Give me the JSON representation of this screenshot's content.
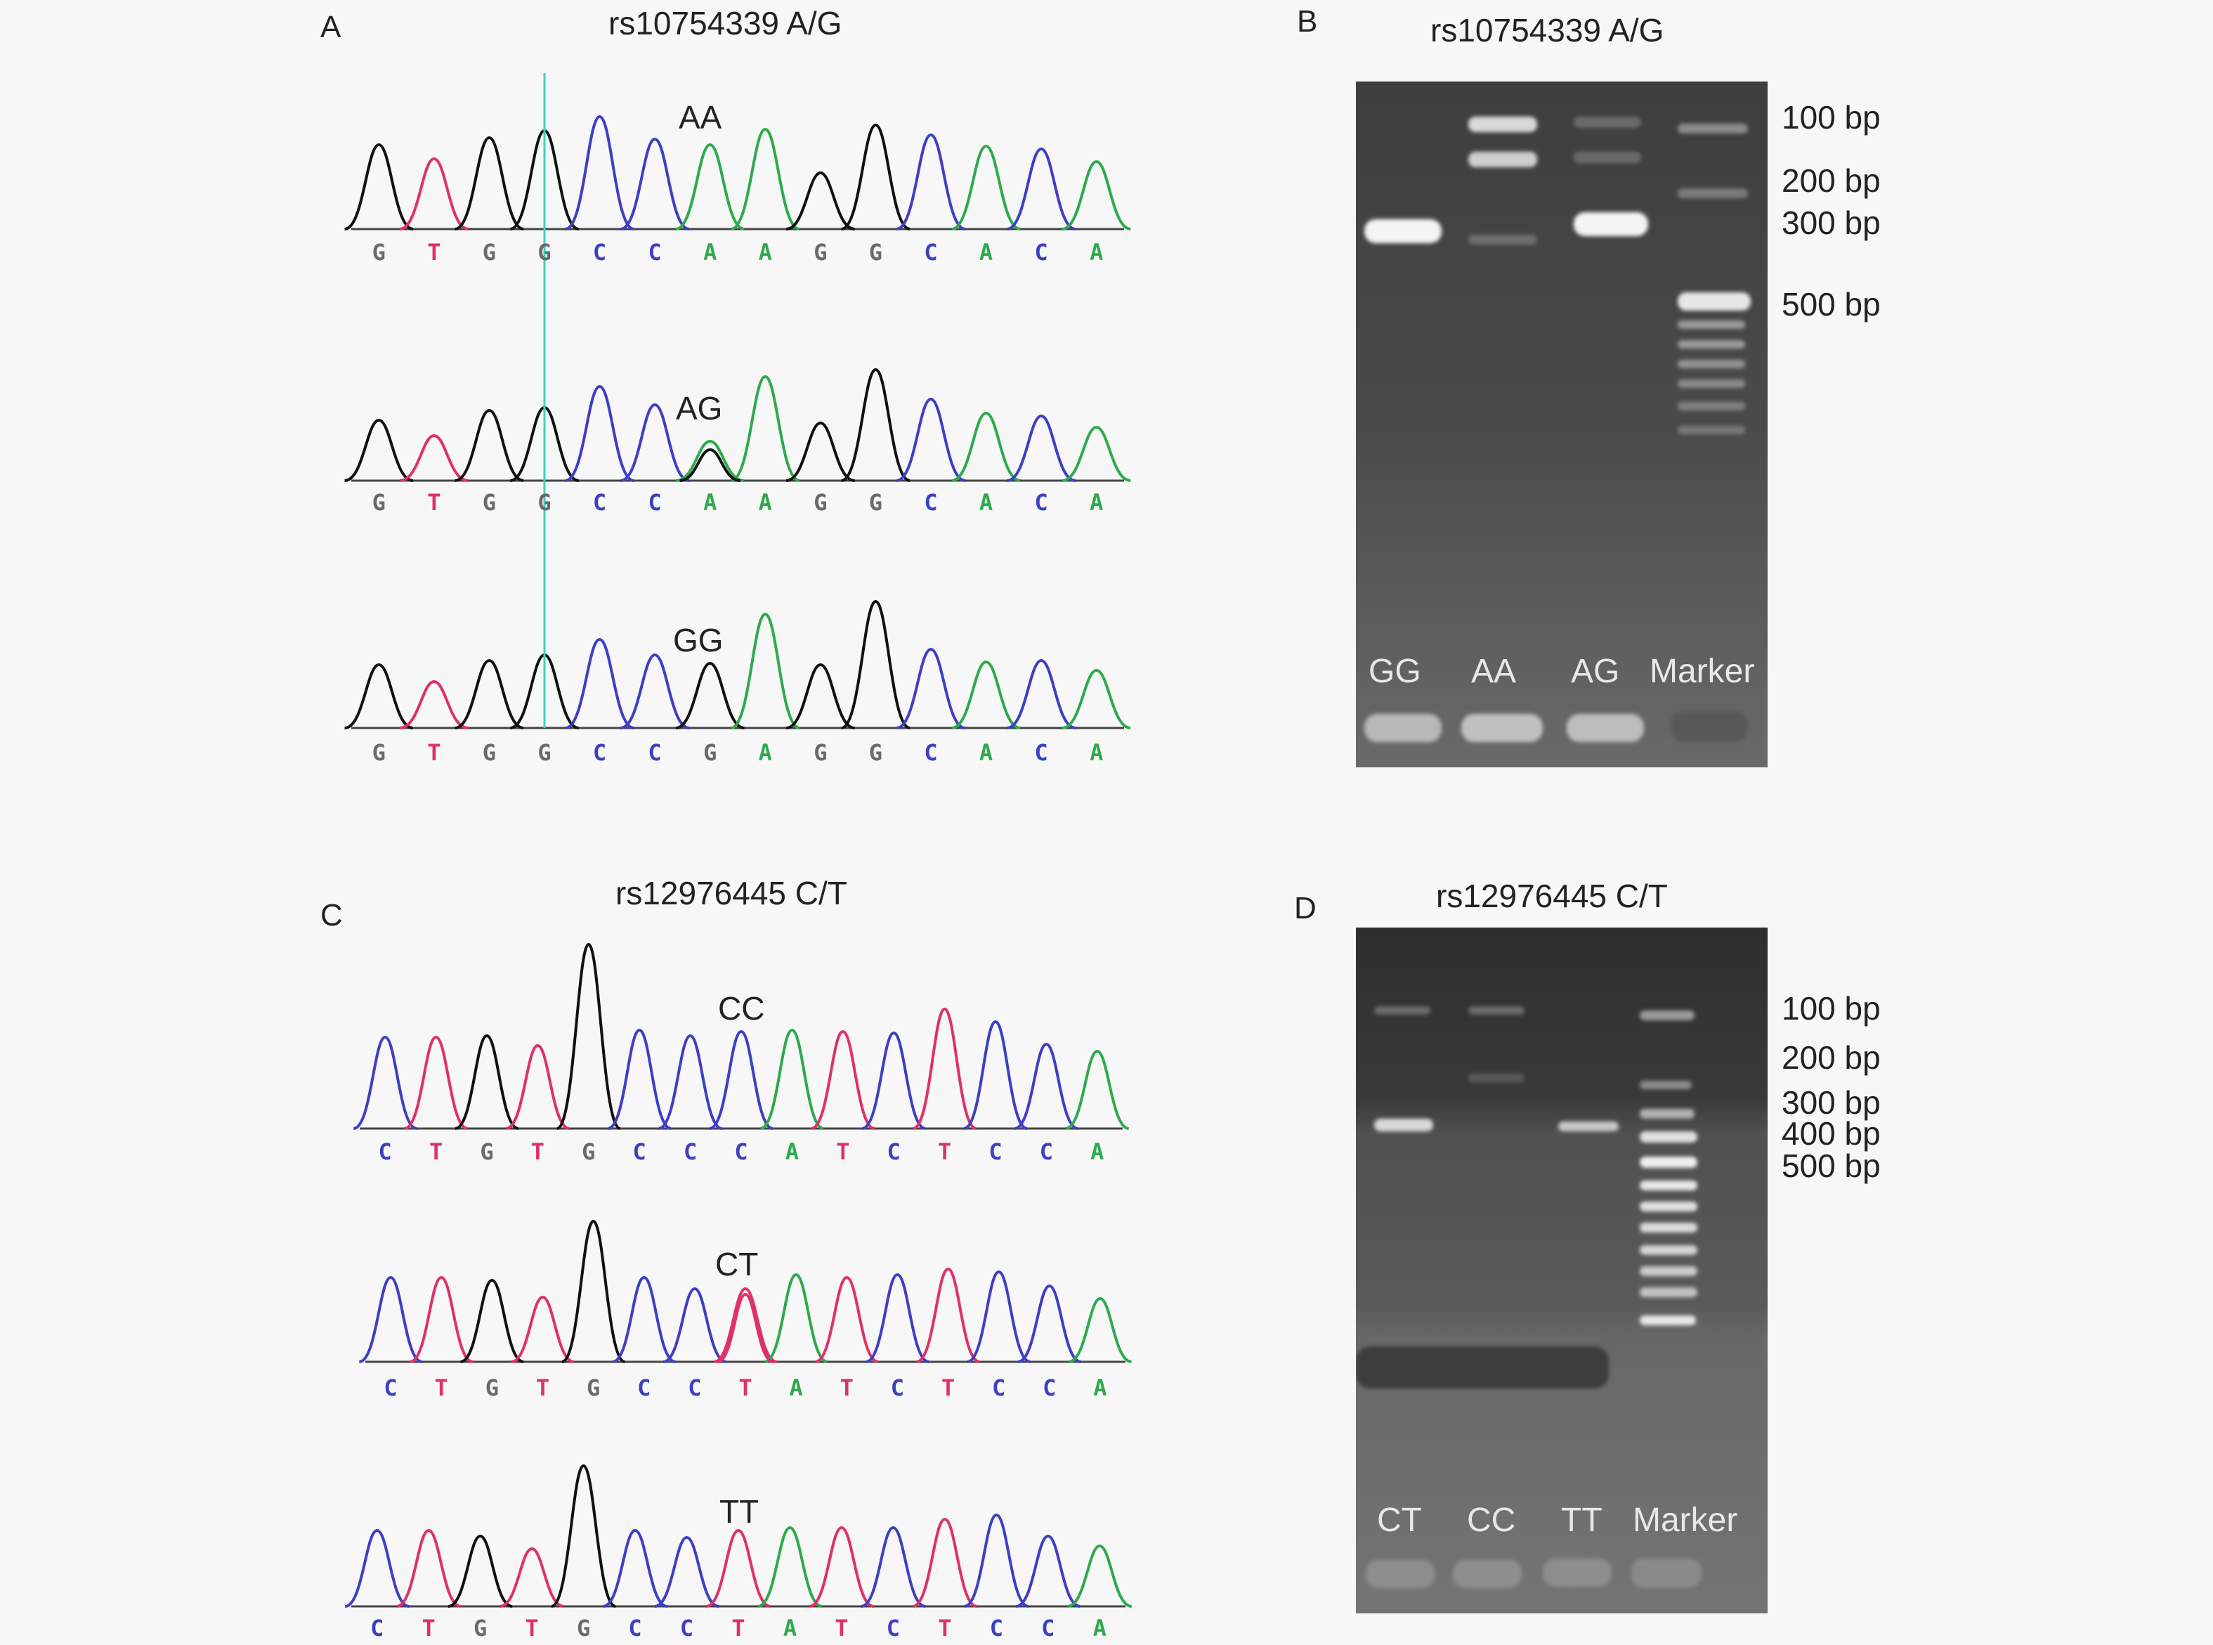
{
  "panels": {
    "A": {
      "letter": "A",
      "title": "rs10754339 A/G",
      "traces": [
        {
          "genotype": "AA",
          "bases": [
            "G",
            "T",
            "G",
            "G",
            "C",
            "C",
            "A",
            "A",
            "G",
            "G",
            "C",
            "A",
            "C",
            "A"
          ]
        },
        {
          "genotype": "AG",
          "bases": [
            "G",
            "T",
            "G",
            "G",
            "C",
            "C",
            "A",
            "A",
            "G",
            "G",
            "C",
            "A",
            "C",
            "A"
          ]
        },
        {
          "genotype": "GG",
          "bases": [
            "G",
            "T",
            "G",
            "G",
            "C",
            "C",
            "G",
            "A",
            "G",
            "G",
            "C",
            "A",
            "C",
            "A"
          ]
        }
      ]
    },
    "B": {
      "letter": "B",
      "title": "rs10754339 A/G",
      "lanes": [
        "GG",
        "AA",
        "AG",
        "Marker"
      ],
      "markers": [
        "100 bp",
        "200 bp",
        "300 bp",
        "500 bp"
      ]
    },
    "C": {
      "letter": "C",
      "title": "rs12976445 C/T",
      "traces": [
        {
          "genotype": "CC",
          "bases": [
            "C",
            "T",
            "G",
            "T",
            "G",
            "C",
            "C",
            "C",
            "A",
            "T",
            "C",
            "T",
            "C",
            "C",
            "A"
          ]
        },
        {
          "genotype": "CT",
          "bases": [
            "C",
            "T",
            "G",
            "T",
            "G",
            "C",
            "C",
            "T",
            "A",
            "T",
            "C",
            "T",
            "C",
            "C",
            "A"
          ]
        },
        {
          "genotype": "TT",
          "bases": [
            "C",
            "T",
            "G",
            "T",
            "G",
            "C",
            "C",
            "T",
            "A",
            "T",
            "C",
            "T",
            "C",
            "C",
            "A"
          ]
        }
      ]
    },
    "D": {
      "letter": "D",
      "title": "rs12976445 C/T",
      "lanes": [
        "CT",
        "CC",
        "TT",
        "Marker"
      ],
      "markers": [
        "100 bp",
        "200 bp",
        "300 bp",
        "400 bp",
        "500 bp"
      ]
    }
  },
  "colors": {
    "A": "#2eaa4e",
    "C": "#3d3fc4",
    "G": "#111111",
    "T": "#e0306a",
    "G_label": "#6a6a6a",
    "cursor": "#38d6c0"
  }
}
